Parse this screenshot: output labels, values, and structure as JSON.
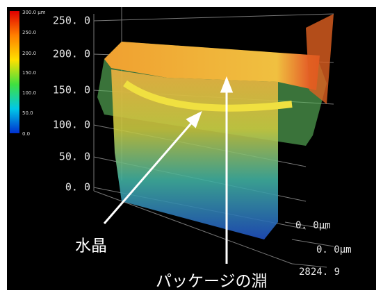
{
  "colorbar": {
    "labels": [
      "300.0 µm",
      "250.0",
      "200.0",
      "150.0",
      "100.0",
      "50.0",
      "0.0"
    ]
  },
  "z_axis": {
    "labels": [
      "250. 0",
      "200. 0",
      "150. 0",
      "100. 0",
      "50. 0",
      "0. 0"
    ]
  },
  "axes": {
    "x_start": "0. 0μm",
    "y_start": "0. 0μm",
    "x_end": "2824. 9"
  },
  "annotations": {
    "crystal": "水晶",
    "package_edge": "パッケージの淵"
  }
}
